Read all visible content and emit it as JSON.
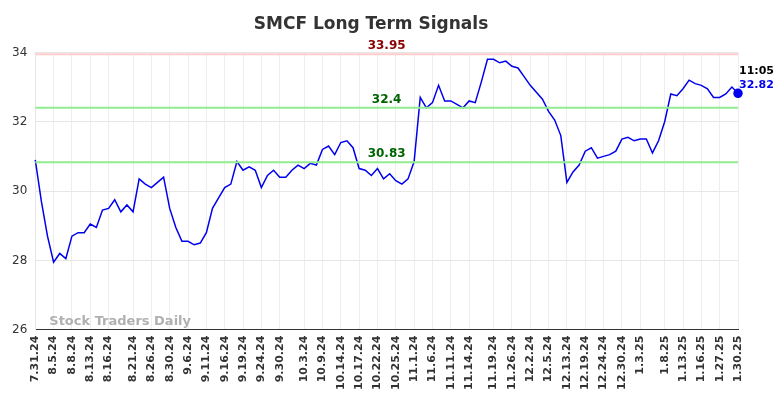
{
  "chart_data": {
    "type": "line",
    "title": "SMCF Long Term Signals",
    "categories": [
      "7.31.24",
      null,
      null,
      "8.5.24",
      null,
      null,
      "8.8.24",
      null,
      null,
      "8.13.24",
      null,
      null,
      "8.16.24",
      null,
      null,
      null,
      "8.21.24",
      null,
      null,
      "8.26.24",
      null,
      null,
      "8.30.24",
      null,
      null,
      "9.6.24",
      null,
      null,
      "9.11.24",
      null,
      null,
      "9.16.24",
      null,
      null,
      "9.19.24",
      null,
      null,
      "9.24.24",
      null,
      null,
      "9.30.24",
      null,
      null,
      null,
      "10.3.24",
      null,
      null,
      "10.9.24",
      null,
      null,
      "10.14.24",
      null,
      null,
      "10.17.24",
      null,
      null,
      "10.22.24",
      null,
      null,
      "10.25.24",
      null,
      null,
      "11.1.24",
      null,
      null,
      "11.6.24",
      null,
      null,
      "11.11.24",
      null,
      null,
      "11.14.24",
      null,
      null,
      null,
      "11.19.24",
      null,
      null,
      "11.26.24",
      null,
      null,
      "12.2.24",
      null,
      null,
      "12.5.24",
      null,
      null,
      "12.13.24",
      null,
      null,
      "12.19.24",
      null,
      null,
      "12.24.24",
      null,
      null,
      "12.30.24",
      null,
      null,
      "1.3.25",
      null,
      null,
      null,
      "1.8.25",
      null,
      null,
      "1.13.25",
      null,
      null,
      "1.16.25",
      null,
      null,
      "1.27.25",
      null,
      null,
      "1.30.25"
    ],
    "values": [
      30.9,
      29.7,
      28.7,
      27.95,
      28.2,
      28.05,
      28.7,
      28.8,
      28.8,
      29.05,
      28.95,
      29.45,
      29.5,
      29.75,
      29.4,
      29.6,
      29.4,
      30.35,
      30.2,
      30.1,
      30.25,
      30.4,
      29.5,
      28.95,
      28.55,
      28.55,
      28.45,
      28.5,
      28.8,
      29.5,
      29.8,
      30.1,
      30.2,
      30.85,
      30.6,
      30.7,
      30.6,
      30.1,
      30.45,
      30.6,
      30.4,
      30.4,
      30.6,
      30.75,
      30.65,
      30.8,
      30.75,
      31.2,
      31.3,
      31.05,
      31.4,
      31.45,
      31.25,
      30.65,
      30.6,
      30.45,
      30.65,
      30.35,
      30.5,
      30.3,
      30.2,
      30.35,
      30.85,
      32.7,
      32.4,
      32.55,
      33.05,
      32.6,
      32.6,
      32.5,
      32.4,
      32.6,
      32.55,
      33.15,
      33.8,
      33.8,
      33.7,
      33.75,
      33.6,
      33.55,
      33.3,
      33.05,
      32.85,
      32.65,
      32.3,
      32.05,
      31.6,
      30.25,
      30.55,
      30.75,
      31.15,
      31.25,
      30.95,
      31.0,
      31.05,
      31.15,
      31.5,
      31.55,
      31.45,
      31.5,
      31.5,
      31.1,
      31.45,
      32.0,
      32.8,
      32.75,
      32.95,
      33.2,
      33.1,
      33.05,
      32.95,
      32.7,
      32.7,
      32.8,
      33.0,
      32.82
    ],
    "color": "#0000ee",
    "ylim": [
      26,
      34
    ],
    "yticks": [
      26,
      28,
      30,
      32,
      34
    ],
    "grid": true,
    "lines": [
      {
        "value": 33.95,
        "label": "33.95",
        "color": "#ffcccc",
        "label_color": "#8b0000"
      },
      {
        "value": 32.4,
        "label": "32.4",
        "color": "#90ee90",
        "label_color": "#006400"
      },
      {
        "value": 30.83,
        "label": "30.83",
        "color": "#90ee90",
        "label_color": "#006400"
      }
    ],
    "last_point": {
      "time": "11:05",
      "label": "32.82",
      "value": 32.82
    },
    "watermark": "Stock Traders Daily"
  }
}
